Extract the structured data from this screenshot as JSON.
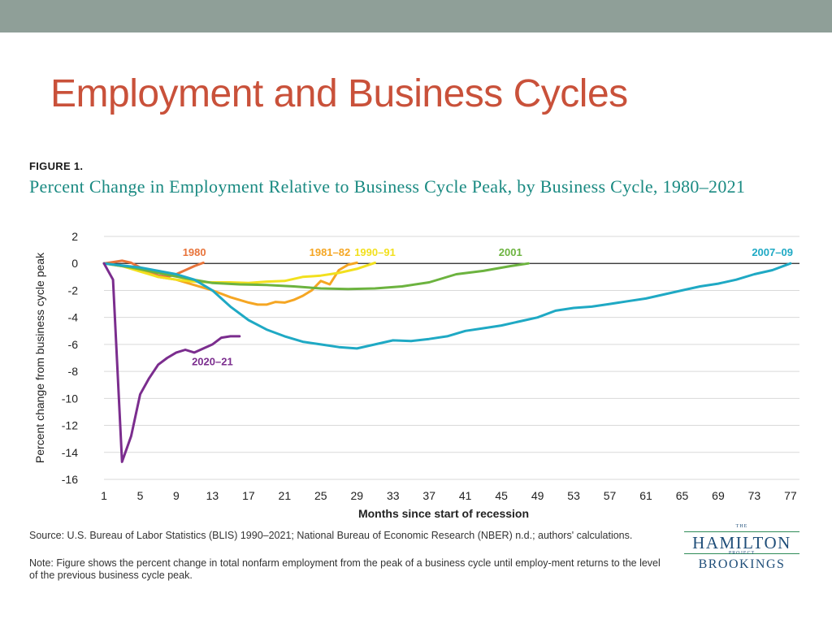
{
  "slide": {
    "title": "Employment and Business Cycles"
  },
  "figure": {
    "label": "FIGURE 1.",
    "title": "Percent Change in Employment Relative to Business Cycle Peak, by Business Cycle, 1980–2021"
  },
  "footnotes": {
    "source": "Source:  U.S. Bureau of Labor Statistics (BLIS) 1990–2021; National Bureau of Economic Research (NBER) n.d.; authors' calculations.",
    "note": "Note: Figure shows the percent change in total nonfarm employment from the peak of a business cycle until employ-ment returns to the level of the previous business cycle peak."
  },
  "logo": {
    "the": "THE",
    "main": "HAMILTON",
    "project": "PROJECT",
    "brookings": "BROOKINGS"
  },
  "colors": {
    "title": "#c9513a",
    "figure_title": "#1a8a82",
    "top_bar": "#8f9f98"
  },
  "chart_data": {
    "type": "line",
    "xlabel": "Months since start of recession",
    "ylabel": "Percent change from business cycle peak",
    "xlim": [
      1,
      78
    ],
    "ylim": [
      -16,
      2
    ],
    "x_ticks": [
      1,
      5,
      9,
      13,
      17,
      21,
      25,
      29,
      33,
      37,
      41,
      45,
      49,
      53,
      57,
      61,
      65,
      69,
      73,
      77
    ],
    "y_ticks": [
      2,
      0,
      -2,
      -4,
      -6,
      -8,
      -10,
      -12,
      -14,
      -16
    ],
    "grid": true,
    "legend": "inline labels",
    "series": [
      {
        "name": "1980",
        "color": "#e8743b",
        "label_anchor": [
          11,
          0.8
        ],
        "x": [
          1,
          2,
          3,
          4,
          5,
          6,
          7,
          8,
          9,
          10,
          11,
          12
        ],
        "y": [
          0,
          0.1,
          0.2,
          0.05,
          -0.3,
          -0.6,
          -0.9,
          -1.0,
          -0.8,
          -0.5,
          -0.2,
          0.05
        ]
      },
      {
        "name": "1981–82",
        "color": "#f5a623",
        "label_anchor": [
          26,
          0.8
        ],
        "x": [
          1,
          3,
          5,
          7,
          9,
          11,
          13,
          15,
          17,
          18,
          19,
          20,
          21,
          22,
          23,
          24,
          25,
          26,
          27,
          28,
          29
        ],
        "y": [
          0,
          -0.2,
          -0.5,
          -1.0,
          -1.2,
          -1.6,
          -2.0,
          -2.5,
          -2.9,
          -3.05,
          -3.05,
          -2.85,
          -2.9,
          -2.7,
          -2.4,
          -2.0,
          -1.3,
          -1.55,
          -0.5,
          -0.1,
          0.05
        ]
      },
      {
        "name": "1990–91",
        "color": "#f2e01e",
        "label_anchor": [
          31,
          0.8
        ],
        "x": [
          1,
          3,
          5,
          7,
          9,
          11,
          13,
          15,
          17,
          19,
          21,
          23,
          25,
          27,
          29,
          31
        ],
        "y": [
          0,
          -0.2,
          -0.6,
          -1.0,
          -1.2,
          -1.35,
          -1.4,
          -1.4,
          -1.45,
          -1.35,
          -1.3,
          -1.0,
          -0.9,
          -0.7,
          -0.4,
          0.05
        ]
      },
      {
        "name": "2001",
        "color": "#6cb33f",
        "label_anchor": [
          46,
          0.8
        ],
        "x": [
          1,
          4,
          7,
          10,
          13,
          16,
          19,
          22,
          25,
          28,
          31,
          34,
          37,
          40,
          43,
          46,
          48
        ],
        "y": [
          0,
          -0.3,
          -0.7,
          -1.1,
          -1.45,
          -1.55,
          -1.6,
          -1.7,
          -1.85,
          -1.9,
          -1.85,
          -1.7,
          -1.4,
          -0.8,
          -0.55,
          -0.2,
          0.0
        ]
      },
      {
        "name": "2007–09",
        "color": "#1fa9c4",
        "label_anchor": [
          75,
          0.8
        ],
        "x": [
          1,
          5,
          9,
          11,
          13,
          15,
          17,
          19,
          21,
          23,
          25,
          27,
          29,
          31,
          33,
          35,
          37,
          39,
          41,
          43,
          45,
          47,
          49,
          51,
          53,
          55,
          57,
          59,
          61,
          63,
          65,
          67,
          69,
          71,
          73,
          75,
          77
        ],
        "y": [
          0,
          -0.3,
          -0.8,
          -1.2,
          -2.0,
          -3.2,
          -4.2,
          -4.9,
          -5.4,
          -5.8,
          -6.0,
          -6.2,
          -6.3,
          -6.0,
          -5.7,
          -5.75,
          -5.6,
          -5.4,
          -5.0,
          -4.8,
          -4.6,
          -4.3,
          -4.0,
          -3.5,
          -3.3,
          -3.2,
          -3.0,
          -2.8,
          -2.6,
          -2.3,
          -2.0,
          -1.7,
          -1.5,
          -1.2,
          -0.8,
          -0.5,
          0.0
        ]
      },
      {
        "name": "2020–21",
        "color": "#7b2d8e",
        "label_anchor": [
          13,
          -7.3
        ],
        "x": [
          1,
          2,
          3,
          4,
          5,
          6,
          7,
          8,
          9,
          10,
          11,
          12,
          13,
          14,
          15,
          16
        ],
        "y": [
          0,
          -1.2,
          -14.7,
          -12.8,
          -9.7,
          -8.5,
          -7.5,
          -7.0,
          -6.6,
          -6.4,
          -6.6,
          -6.3,
          -6.0,
          -5.5,
          -5.4,
          -5.4
        ]
      }
    ]
  }
}
